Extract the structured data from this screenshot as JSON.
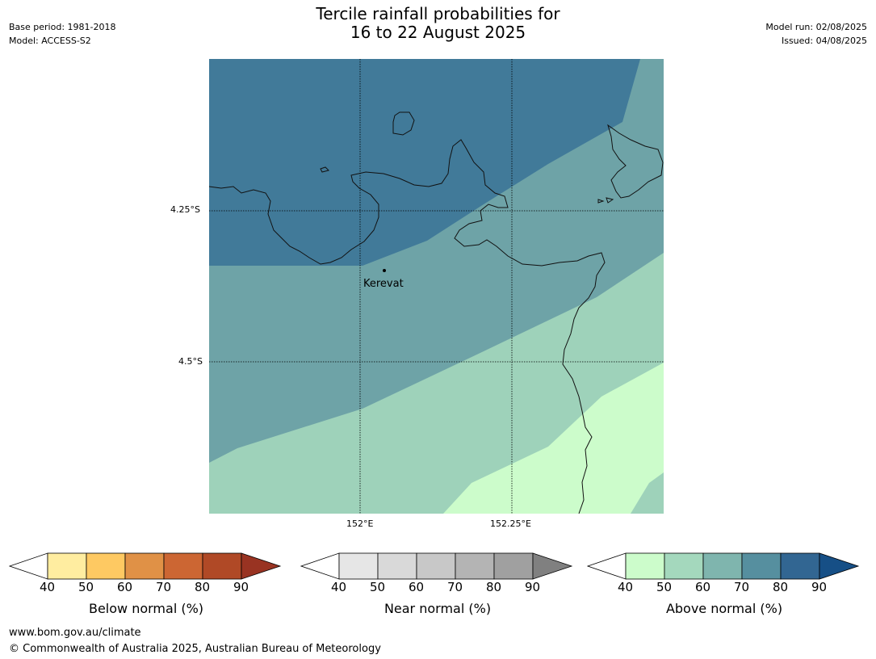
{
  "title": {
    "line1": "Tercile rainfall probabilities for",
    "line2": "16 to 22 August 2025"
  },
  "meta_left": {
    "base_period": "Base period: 1981-2018",
    "model": "Model: ACCESS-S2"
  },
  "meta_right": {
    "model_run": "Model run: 02/08/2025",
    "issued": "Issued: 04/08/2025"
  },
  "map": {
    "lat_labels": [
      "4.25°S",
      "4.5°S"
    ],
    "lon_labels": [
      "152°E",
      "152.25°E"
    ],
    "place": "Kerevat",
    "zone_colors": [
      "#417a99",
      "#6ea3a7",
      "#9ed2ba",
      "#ccfccb"
    ]
  },
  "colorbars": [
    {
      "label": "Below normal (%)",
      "ticks": [
        "40",
        "50",
        "60",
        "70",
        "80",
        "90"
      ],
      "colors": [
        "#ffffff",
        "#ffeda0",
        "#fec962",
        "#e09146",
        "#cc6633",
        "#b04926",
        "#993322"
      ]
    },
    {
      "label": "Near normal (%)",
      "ticks": [
        "40",
        "50",
        "60",
        "70",
        "80",
        "90"
      ],
      "colors": [
        "#ffffff",
        "#e6e6e6",
        "#d9d9d9",
        "#c8c8c8",
        "#b4b4b4",
        "#a0a0a0",
        "#808080"
      ]
    },
    {
      "label": "Above normal (%)",
      "ticks": [
        "40",
        "50",
        "60",
        "70",
        "80",
        "90"
      ],
      "colors": [
        "#ffffff",
        "#ccfccb",
        "#a4d8bd",
        "#7fb5ae",
        "#568f9f",
        "#326692",
        "#164f86"
      ]
    }
  ],
  "footer": {
    "url": "www.bom.gov.au/climate",
    "copyright": "© Commonwealth of Australia 2025, Australian Bureau of Meteorology"
  }
}
